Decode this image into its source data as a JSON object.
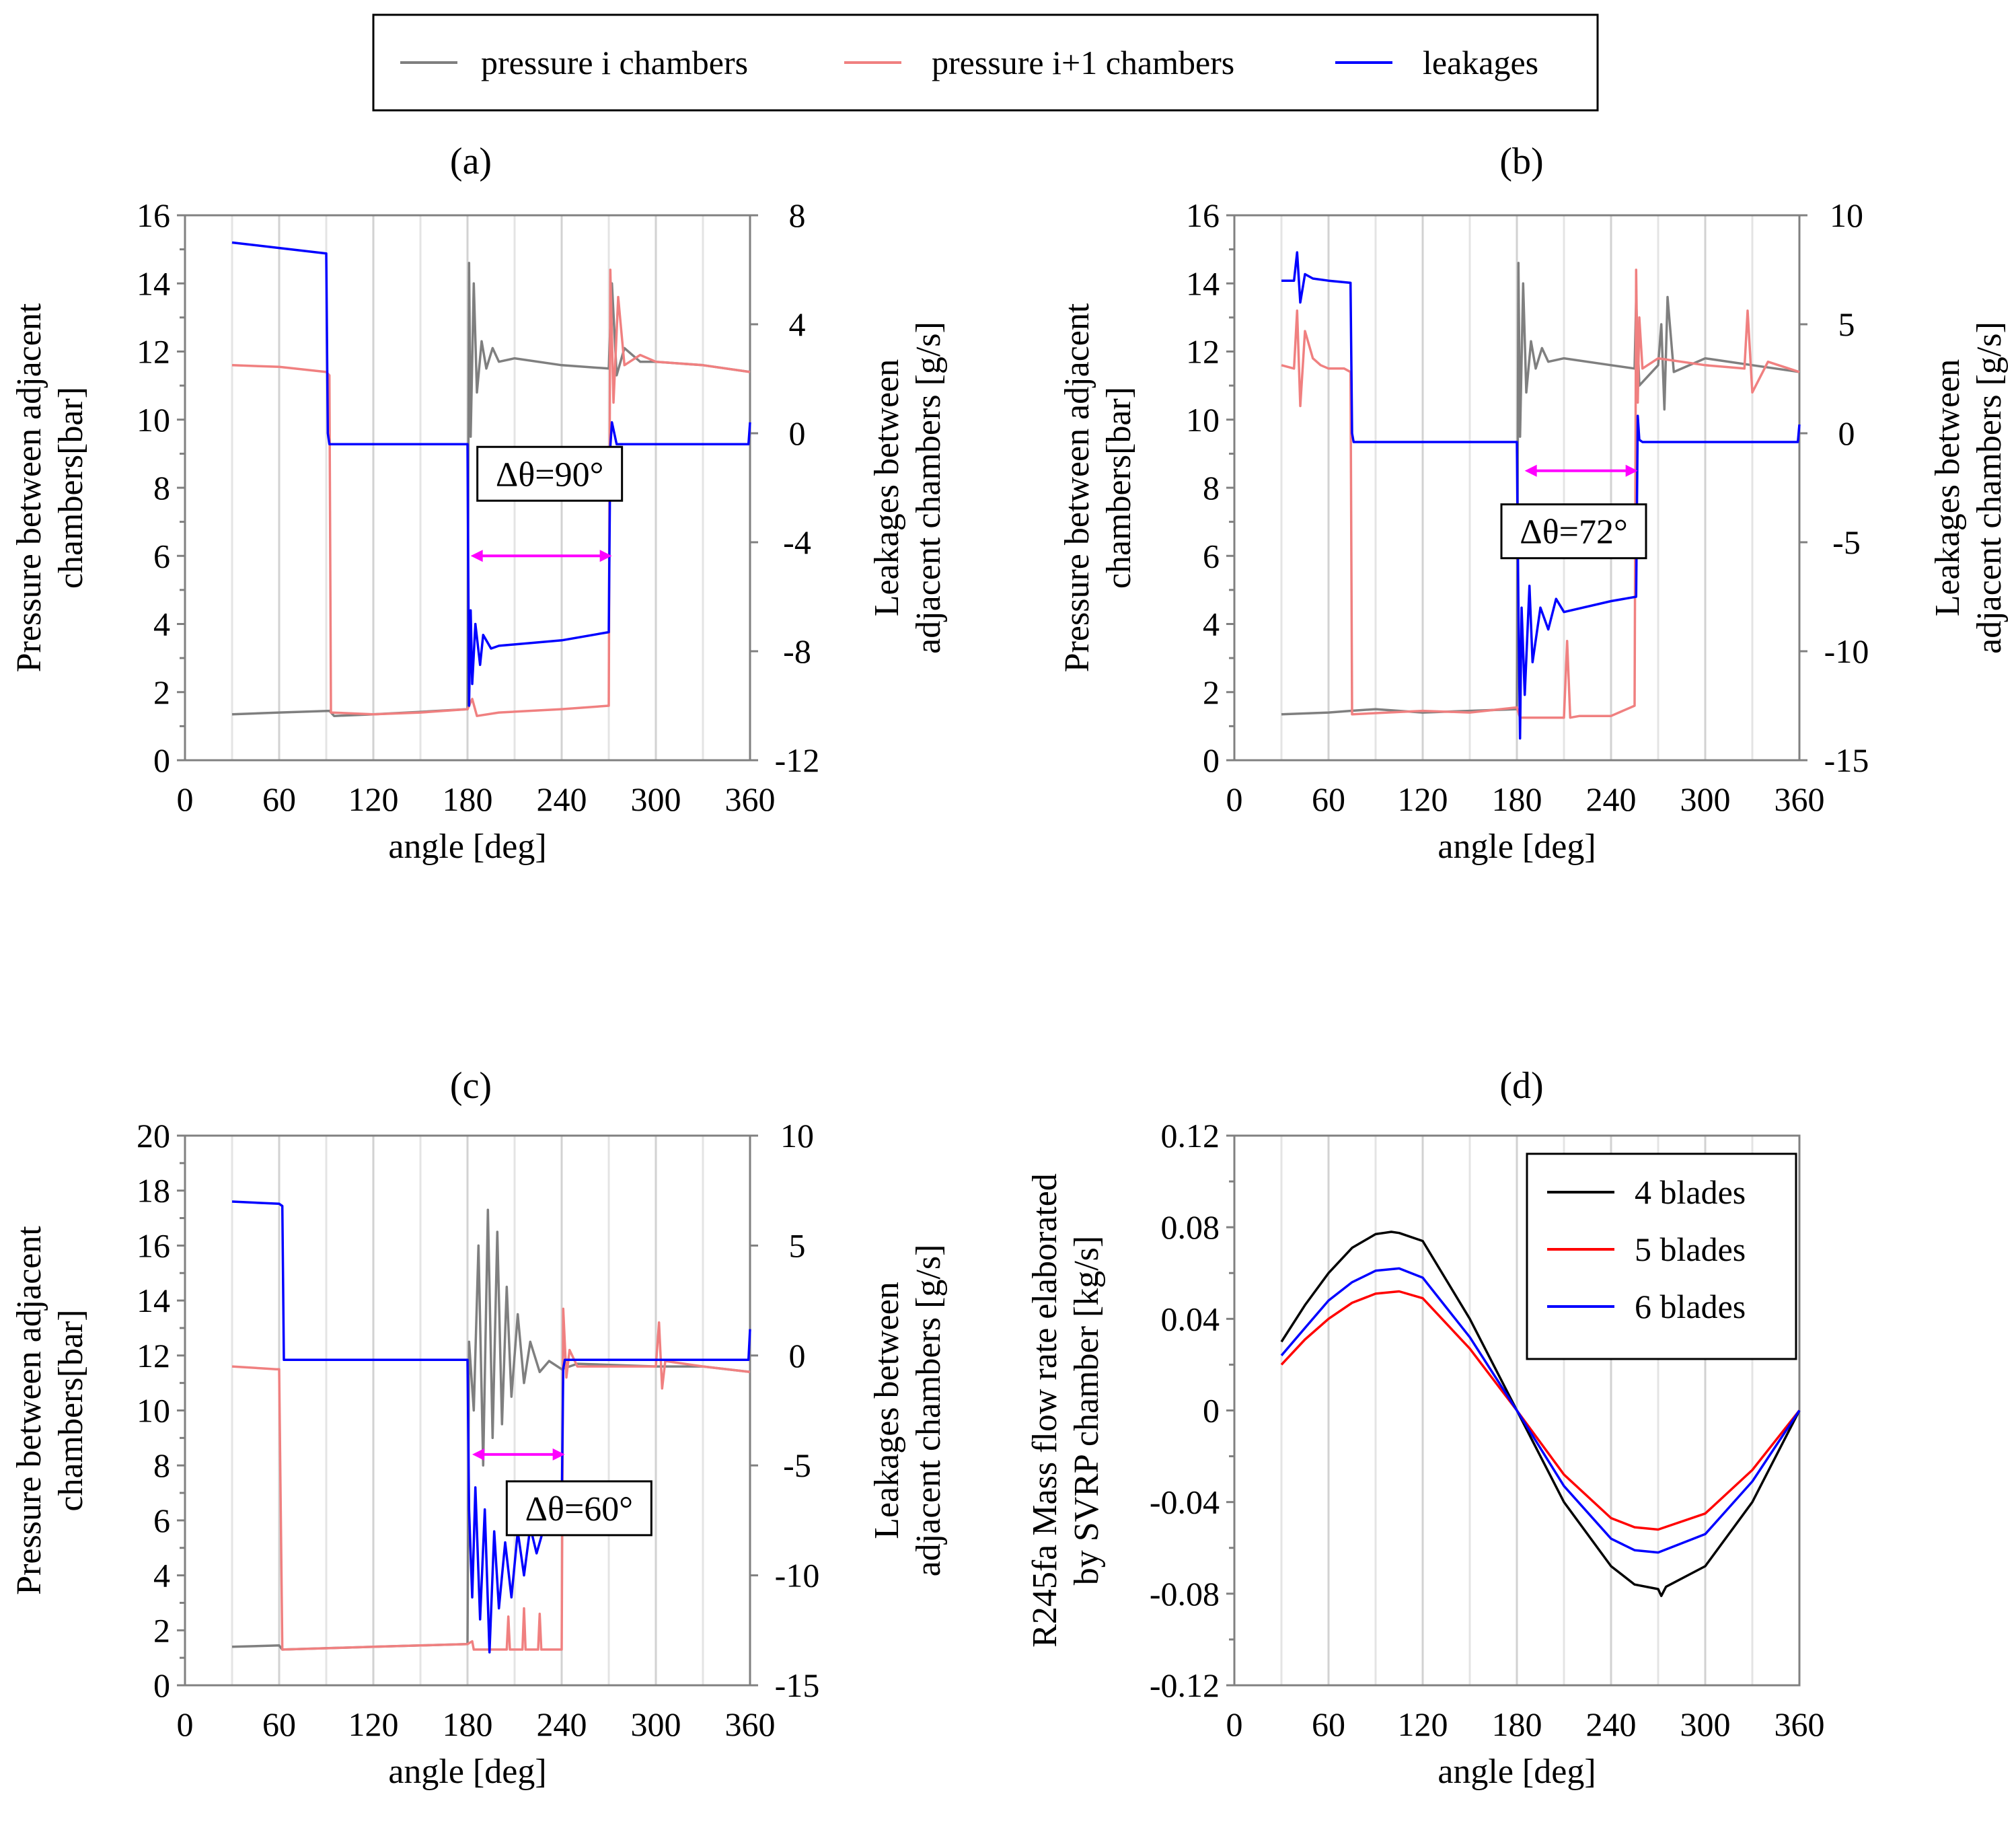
{
  "figure": {
    "legend": {
      "entries": [
        {
          "label": "pressure i chambers",
          "color": "#7f7f7f"
        },
        {
          "label": "pressure i+1 chambers",
          "color": "#f08080"
        },
        {
          "label": "leakages",
          "color": "#0000ff"
        }
      ]
    }
  },
  "chart_data": [
    {
      "id": "a",
      "type": "line",
      "title": "(a)",
      "xlabel": "angle [deg]",
      "ylabel": [
        "Pressure between adjacent",
        "chambers[bar]"
      ],
      "y2label": [
        "Leakages between",
        "adjacent chambers [g/s]"
      ],
      "xlim": [
        0,
        360
      ],
      "ylim": [
        0,
        16
      ],
      "y2lim": [
        -12,
        8
      ],
      "xticks": [
        0,
        60,
        120,
        180,
        240,
        300,
        360
      ],
      "yticks": [
        0,
        2,
        4,
        6,
        8,
        10,
        12,
        14,
        16
      ],
      "y2ticks": [
        -12,
        -8,
        -4,
        0,
        4,
        8
      ],
      "annotation": {
        "text": "Δθ=90°",
        "from_deg": 182,
        "to_deg": 272,
        "arrow_y_bar": 6.0
      },
      "series": [
        {
          "name": "pressure i chambers",
          "color": "#7f7f7f",
          "axis": "left",
          "x": [
            30,
            60,
            92,
            95,
            120,
            150,
            180,
            181,
            182,
            184,
            186,
            189,
            192,
            196,
            200,
            210,
            240,
            270,
            272,
            275,
            280,
            290,
            300,
            330,
            360
          ],
          "y": [
            1.35,
            1.4,
            1.45,
            1.3,
            1.35,
            1.42,
            1.5,
            14.6,
            9.5,
            14.0,
            10.8,
            12.3,
            11.5,
            12.1,
            11.7,
            11.8,
            11.6,
            11.5,
            14.0,
            11.3,
            12.1,
            11.7,
            11.7,
            11.6,
            11.4
          ]
        },
        {
          "name": "pressure i+1 chambers",
          "color": "#f08080",
          "axis": "left",
          "x": [
            30,
            60,
            90,
            92,
            93,
            120,
            150,
            180,
            183,
            186,
            200,
            240,
            270,
            271,
            273,
            276,
            280,
            290,
            300,
            330,
            360
          ],
          "y": [
            11.6,
            11.55,
            11.4,
            11.3,
            1.4,
            1.35,
            1.4,
            1.5,
            1.8,
            1.3,
            1.4,
            1.5,
            1.6,
            14.4,
            10.5,
            13.6,
            11.6,
            11.9,
            11.7,
            11.6,
            11.4
          ]
        },
        {
          "name": "leakages",
          "color": "#0000ff",
          "axis": "right",
          "x": [
            30,
            60,
            90,
            91,
            92,
            93,
            120,
            150,
            180,
            181,
            182,
            183,
            185,
            188,
            190,
            195,
            200,
            240,
            270,
            271,
            272,
            275,
            300,
            330,
            359,
            360
          ],
          "y": [
            7.0,
            6.8,
            6.6,
            0.0,
            -0.4,
            -0.4,
            -0.4,
            -0.4,
            -0.4,
            -10.0,
            -6.5,
            -9.2,
            -7.0,
            -8.5,
            -7.4,
            -7.9,
            -7.8,
            -7.6,
            -7.3,
            -0.5,
            0.4,
            -0.4,
            -0.4,
            -0.4,
            -0.4,
            0.4
          ]
        }
      ]
    },
    {
      "id": "b",
      "type": "line",
      "title": "(b)",
      "xlabel": "angle [deg]",
      "ylabel": [
        "Pressure between adjacent",
        "chambers[bar]"
      ],
      "y2label": [
        "Leakages between",
        "adjacent chambers [g/s]"
      ],
      "xlim": [
        0,
        360
      ],
      "ylim": [
        0,
        16
      ],
      "y2lim": [
        -15,
        10
      ],
      "xticks": [
        0,
        60,
        120,
        180,
        240,
        300,
        360
      ],
      "yticks": [
        0,
        2,
        4,
        6,
        8,
        10,
        12,
        14,
        16
      ],
      "y2ticks": [
        -15,
        -10,
        -5,
        0,
        5,
        10
      ],
      "annotation": {
        "text": "Δθ=72°",
        "from_deg": 185,
        "to_deg": 257,
        "arrow_y_bar": 8.5
      },
      "series": [
        {
          "name": "pressure i chambers",
          "color": "#7f7f7f",
          "axis": "left",
          "x": [
            30,
            60,
            74,
            90,
            120,
            150,
            180,
            181,
            182,
            184,
            186,
            189,
            192,
            196,
            200,
            210,
            240,
            255,
            256,
            258,
            270,
            272,
            274,
            276,
            280,
            300,
            330,
            360
          ],
          "y": [
            1.35,
            1.4,
            1.45,
            1.5,
            1.4,
            1.45,
            1.5,
            14.6,
            9.5,
            14.0,
            10.8,
            12.3,
            11.5,
            12.1,
            11.7,
            11.8,
            11.6,
            11.5,
            13.5,
            11.0,
            11.6,
            12.8,
            10.3,
            13.6,
            11.4,
            11.8,
            11.6,
            11.4
          ]
        },
        {
          "name": "pressure i+1 chambers",
          "color": "#f08080",
          "axis": "left",
          "x": [
            30,
            38,
            40,
            42,
            45,
            50,
            55,
            60,
            70,
            74,
            75,
            120,
            150,
            180,
            182,
            185,
            210,
            212,
            214,
            220,
            240,
            255,
            256,
            257,
            258,
            260,
            270,
            300,
            325,
            327,
            330,
            340,
            360
          ],
          "y": [
            11.6,
            11.5,
            13.2,
            10.4,
            12.6,
            11.8,
            11.6,
            11.5,
            11.5,
            11.4,
            1.35,
            1.45,
            1.4,
            1.55,
            1.25,
            1.25,
            1.25,
            3.5,
            1.25,
            1.3,
            1.3,
            1.6,
            14.4,
            10.5,
            13.0,
            11.5,
            11.8,
            11.6,
            11.5,
            13.2,
            10.8,
            11.7,
            11.4
          ]
        },
        {
          "name": "leakages",
          "color": "#0000ff",
          "axis": "right",
          "x": [
            30,
            38,
            40,
            42,
            45,
            50,
            60,
            74,
            75,
            76,
            120,
            150,
            180,
            181,
            182,
            183,
            185,
            188,
            190,
            195,
            200,
            205,
            210,
            240,
            256,
            257,
            258,
            260,
            300,
            330,
            359,
            360
          ],
          "y": [
            7.0,
            7.0,
            8.3,
            6.0,
            7.3,
            7.1,
            7.0,
            6.9,
            0.0,
            -0.4,
            -0.4,
            -0.4,
            -0.4,
            -8.0,
            -14.0,
            -8.0,
            -12.0,
            -7.0,
            -10.5,
            -8.0,
            -9.0,
            -7.6,
            -8.2,
            -7.7,
            -7.5,
            0.8,
            -0.3,
            -0.4,
            -0.4,
            -0.4,
            -0.4,
            0.4
          ]
        }
      ]
    },
    {
      "id": "c",
      "type": "line",
      "title": "(c)",
      "xlabel": "angle [deg]",
      "ylabel": [
        "Pressure between adjacent",
        "chambers[bar]"
      ],
      "y2label": [
        "Leakages between",
        "adjacent chambers [g/s]"
      ],
      "xlim": [
        0,
        360
      ],
      "ylim": [
        0,
        20
      ],
      "y2lim": [
        -15,
        10
      ],
      "xticks": [
        0,
        60,
        120,
        180,
        240,
        300,
        360
      ],
      "yticks": [
        0,
        2,
        4,
        6,
        8,
        10,
        12,
        14,
        16,
        18,
        20
      ],
      "y2ticks": [
        -15,
        -10,
        -5,
        0,
        5,
        10
      ],
      "annotation": {
        "text": "Δθ=60°",
        "from_deg": 183,
        "to_deg": 242,
        "arrow_y_bar": 8.4
      },
      "series": [
        {
          "name": "pressure i chambers",
          "color": "#7f7f7f",
          "axis": "left",
          "x": [
            30,
            60,
            62,
            90,
            120,
            150,
            180,
            181,
            184,
            187,
            190,
            193,
            196,
            199,
            202,
            205,
            208,
            212,
            216,
            220,
            226,
            232,
            240,
            250,
            300,
            330,
            360
          ],
          "y": [
            1.4,
            1.45,
            1.3,
            1.35,
            1.4,
            1.45,
            1.5,
            12.5,
            10.0,
            16.0,
            8.0,
            17.3,
            9.0,
            16.5,
            9.5,
            14.5,
            10.5,
            13.5,
            11.0,
            12.5,
            11.4,
            11.8,
            11.5,
            11.7,
            11.6,
            11.6,
            11.4
          ]
        },
        {
          "name": "pressure i+1 chambers",
          "color": "#f08080",
          "axis": "left",
          "x": [
            30,
            58,
            60,
            62,
            120,
            150,
            180,
            183,
            184,
            200,
            205,
            206,
            207,
            215,
            216,
            217,
            225,
            226,
            227,
            240,
            241,
            243,
            245,
            250,
            300,
            302,
            304,
            306,
            330,
            360
          ],
          "y": [
            11.6,
            11.5,
            11.5,
            1.3,
            1.4,
            1.45,
            1.5,
            1.6,
            1.3,
            1.3,
            1.3,
            2.5,
            1.3,
            1.3,
            2.8,
            1.3,
            1.3,
            2.6,
            1.3,
            1.3,
            13.7,
            11.2,
            12.2,
            11.6,
            11.6,
            13.2,
            10.8,
            11.8,
            11.6,
            11.4
          ]
        },
        {
          "name": "leakages",
          "color": "#0000ff",
          "axis": "right",
          "x": [
            30,
            60,
            62,
            63,
            120,
            150,
            180,
            181,
            183,
            185,
            188,
            191,
            194,
            197,
            200,
            204,
            208,
            212,
            216,
            220,
            224,
            230,
            240,
            241,
            242,
            245,
            300,
            330,
            359,
            360
          ],
          "y": [
            7.0,
            6.9,
            6.8,
            -0.2,
            -0.2,
            -0.2,
            -0.2,
            -7.0,
            -11.0,
            -6.0,
            -12.0,
            -7.0,
            -13.5,
            -8.0,
            -11.5,
            -8.5,
            -11.0,
            -8.0,
            -10.0,
            -7.8,
            -9.0,
            -7.5,
            -7.2,
            -0.6,
            -0.2,
            -0.2,
            -0.2,
            -0.2,
            -0.2,
            1.2
          ]
        }
      ]
    },
    {
      "id": "d",
      "type": "line",
      "title": "(d)",
      "xlabel": "angle [deg]",
      "ylabel": [
        "R245fa Mass flow rate elaborated",
        "by SVRP chamber [kg/s]"
      ],
      "xlim": [
        0,
        360
      ],
      "ylim": [
        -0.12,
        0.12
      ],
      "xticks": [
        0,
        60,
        120,
        180,
        240,
        300,
        360
      ],
      "yticks": [
        -0.12,
        -0.08,
        -0.04,
        0,
        0.04,
        0.08,
        0.12
      ],
      "ytick_labels": [
        "-0.12",
        "-0.08",
        "-0.04",
        "0",
        "0.04",
        "0.08",
        "0.12"
      ],
      "legend": [
        "4 blades",
        "5 blades",
        "6 blades"
      ],
      "series": [
        {
          "name": "4 blades",
          "color": "#000000",
          "amplitude": 0.078,
          "x_start": 30,
          "x": [
            30,
            45,
            60,
            75,
            90,
            95,
            100,
            105,
            120,
            150,
            180,
            210,
            240,
            255,
            270,
            272,
            275,
            300,
            330,
            360
          ],
          "y": [
            0.03,
            0.046,
            0.06,
            0.071,
            0.077,
            0.0775,
            0.078,
            0.0775,
            0.074,
            0.04,
            0.0,
            -0.04,
            -0.068,
            -0.076,
            -0.078,
            -0.081,
            -0.077,
            -0.068,
            -0.04,
            0.0
          ]
        },
        {
          "name": "5 blades",
          "color": "#ff0000",
          "amplitude": 0.052,
          "x_start": 30,
          "x": [
            30,
            45,
            60,
            75,
            90,
            105,
            120,
            150,
            180,
            210,
            240,
            255,
            270,
            300,
            330,
            360
          ],
          "y": [
            0.02,
            0.031,
            0.04,
            0.047,
            0.051,
            0.052,
            0.049,
            0.027,
            0.0,
            -0.028,
            -0.047,
            -0.051,
            -0.052,
            -0.045,
            -0.026,
            0.0
          ]
        },
        {
          "name": "6 blades",
          "color": "#0000ff",
          "amplitude": 0.062,
          "x_start": 30,
          "x": [
            30,
            45,
            60,
            75,
            90,
            105,
            120,
            150,
            180,
            210,
            240,
            255,
            270,
            300,
            330,
            360
          ],
          "y": [
            0.024,
            0.036,
            0.048,
            0.056,
            0.061,
            0.062,
            0.058,
            0.032,
            0.0,
            -0.033,
            -0.056,
            -0.061,
            -0.062,
            -0.054,
            -0.031,
            0.0
          ]
        }
      ]
    }
  ]
}
